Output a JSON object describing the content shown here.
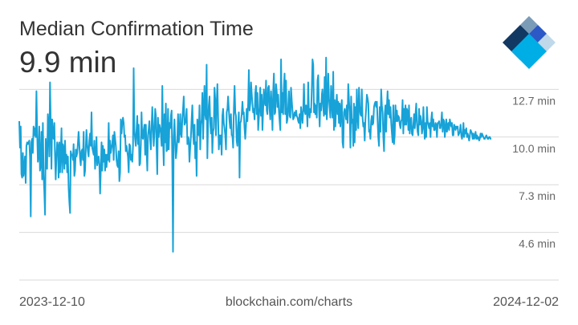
{
  "header": {
    "title": "Median Confirmation Time",
    "current_value": "9.9 min"
  },
  "footer": {
    "start_date": "2023-12-10",
    "source": "blockchain.com/charts",
    "end_date": "2024-12-02"
  },
  "logo": {
    "icon": "blockchain-logo-icon",
    "colors": [
      "#123962",
      "#7b9cb7",
      "#2d59c6",
      "#00aee6",
      "#bfd9ea"
    ]
  },
  "colors": {
    "line": "#17a2d8",
    "grid": "#d9d9d9",
    "tick_text": "#666666"
  },
  "chart_data": {
    "type": "line",
    "title": "Median Confirmation Time",
    "x_range": [
      "2023-12-10",
      "2024-12-02"
    ],
    "y_unit": "min",
    "ylim": [
      1.9,
      13.4
    ],
    "y_ticks": [
      {
        "value": 12.7,
        "label": "12.7 min"
      },
      {
        "value": 10.0,
        "label": "10.0 min"
      },
      {
        "value": 7.3,
        "label": "7.3 min"
      },
      {
        "value": 4.6,
        "label": "4.6 min"
      }
    ],
    "grid": true,
    "series": [
      {
        "values": [
          10.9,
          9.4,
          10.6,
          7.9,
          7.7,
          9.1,
          7.8,
          8.1,
          8.9,
          7.4,
          9.5,
          9.7,
          9.6,
          9.7,
          9.8,
          8.8,
          5.5,
          9.7,
          9.9,
          9.1,
          10.6,
          10.1,
          10.5,
          10.0,
          12.6,
          10.2,
          8.6,
          9.0,
          10.6,
          8.1,
          8.4,
          10.3,
          7.6,
          10.8,
          7.9,
          6.9,
          5.6,
          9.9,
          8.3,
          8.2,
          11.3,
          10.6,
          8.9,
          13.1,
          10.8,
          8.2,
          11.0,
          10.2,
          9.9,
          10.8,
          9.0,
          7.6,
          8.9,
          9.7,
          9.5,
          7.7,
          9.7,
          8.0,
          9.1,
          10.5,
          8.0,
          9.6,
          9.4,
          8.2,
          9.8,
          8.5,
          9.0,
          8.0,
          8.9,
          7.1,
          6.3,
          5.7,
          9.2,
          9.0,
          9.0,
          8.7,
          9.6,
          7.8,
          8.1,
          9.3,
          8.9,
          9.1,
          9.7,
          10.3,
          9.6,
          8.8,
          8.4,
          9.2,
          9.3,
          8.7,
          10.3,
          7.8,
          8.1,
          9.4,
          10.4,
          9.6,
          9.2,
          8.9,
          9.8,
          10.2,
          9.5,
          11.4,
          9.4,
          9.2,
          9.0,
          9.8,
          8.2,
          8.9,
          10.0,
          8.4,
          8.7,
          8.9,
          8.4,
          6.8,
          8.2,
          9.7,
          8.1,
          9.5,
          8.6,
          9.3,
          8.1,
          9.0,
          8.3,
          9.0,
          8.7,
          10.8,
          8.6,
          9.8,
          9.1,
          9.4,
          9.6,
          10.1,
          8.7,
          10.3,
          9.9,
          9.5,
          8.7,
          8.4,
          8.3,
          9.2,
          7.5,
          8.0,
          11.0,
          10.2,
          10.8,
          11.1,
          10.8,
          10.0,
          10.1,
          9.2,
          9.5,
          9.2,
          8.9,
          8.0,
          9.6,
          9.5,
          8.7,
          9.0,
          8.6,
          9.5,
          13.9,
          10.4,
          9.9,
          9.5,
          10.4,
          11.2,
          9.6,
          10.7,
          8.4,
          8.5,
          9.6,
          11.4,
          10.0,
          9.9,
          10.4,
          10.7,
          9.0,
          10.7,
          9.2,
          8.1,
          10.1,
          10.5,
          10.9,
          9.9,
          9.3,
          10.5,
          11.7,
          10.6,
          9.5,
          10.3,
          11.6,
          11.2,
          9.3,
          7.9,
          11.1,
          10.0,
          10.7,
          10.5,
          10.2,
          9.5,
          12.9,
          9.9,
          8.4,
          11.3,
          9.7,
          11.9,
          9.2,
          9.3,
          11.6,
          9.3,
          10.8,
          10.5,
          11.2,
          11.5,
          8.2,
          3.5,
          10.0,
          11.0,
          9.9,
          8.8,
          9.2,
          9.9,
          11.3,
          9.7,
          10.2,
          11.3,
          10.2,
          10.0,
          11.0,
          11.6,
          12.3,
          10.7,
          10.8,
          11.0,
          11.6,
          9.6,
          10.0,
          9.9,
          8.6,
          9.4,
          10.0,
          11.0,
          11.8,
          10.3,
          9.6,
          10.7,
          8.8,
          9.7,
          7.8,
          11.0,
          10.6,
          10.1,
          11.8,
          9.3,
          10.7,
          11.0,
          12.5,
          9.9,
          11.5,
          12.9,
          11.3,
          11.0,
          14.1,
          8.8,
          10.8,
          11.8,
          12.3,
          10.8,
          10.2,
          11.1,
          9.1,
          10.3,
          10.5,
          12.8,
          12.1,
          10.1,
          11.9,
          13.0,
          11.1,
          9.3,
          10.1,
          9.6,
          10.1,
          9.0,
          11.2,
          11.6,
          10.8,
          10.5,
          10.1,
          9.3,
          11.4,
          11.6,
          12.3,
          11.6,
          10.9,
          10.5,
          11.3,
          10.1,
          10.1,
          9.4,
          11.6,
          12.9,
          11.4,
          11.2,
          9.8,
          9.5,
          10.6,
          11.4,
          7.7,
          10.8,
          10.9,
          11.3,
          12.0,
          11.3,
          11.4,
          10.5,
          9.9,
          10.6,
          11.6,
          10.9,
          11.9,
          13.8,
          11.5,
          11.9,
          13.1,
          12.5,
          11.9,
          11.4,
          11.6,
          11.0,
          12.5,
          12.9,
          11.3,
          12.5,
          10.4,
          11.1,
          11.7,
          12.8,
          11.2,
          12.4,
          10.4,
          11.5,
          12.7,
          12.0,
          11.8,
          13.2,
          11.5,
          11.3,
          12.8,
          12.9,
          11.6,
          11.0,
          12.6,
          11.8,
          10.4,
          12.6,
          13.6,
          11.3,
          11.4,
          13.0,
          12.6,
          11.7,
          12.4,
          11.5,
          10.9,
          10.4,
          14.4,
          11.4,
          12.5,
          11.3,
          12.8,
          13.6,
          11.3,
          13.2,
          10.8,
          11.0,
          11.7,
          12.6,
          11.2,
          11.1,
          12.8,
          12.1,
          11.5,
          11.0,
          11.1,
          11.4,
          11.2,
          11.5,
          11.2,
          11.1,
          10.9,
          10.8,
          11.3,
          10.5,
          11.7,
          11.3,
          10.8,
          11.5,
          13.0,
          11.5,
          11.3,
          11.8,
          11.6,
          10.6,
          13.1,
          11.4,
          11.1,
          11.6,
          11.4,
          12.7,
          14.4,
          14.1,
          11.4,
          11.9,
          11.3,
          11.8,
          11.1,
          13.2,
          13.5,
          11.7,
          10.6,
          11.9,
          11.5,
          12.4,
          12.7,
          11.7,
          11.2,
          13.4,
          11.3,
          14.5,
          11.0,
          12.0,
          13.6,
          12.2,
          11.6,
          11.1,
          12.9,
          11.9,
          11.1,
          13.7,
          10.4,
          12.1,
          10.6,
          11.8,
          12.4,
          11.3,
          12.0,
          10.8,
          11.9,
          10.6,
          11.6,
          12.1,
          9.7,
          9.4,
          11.4,
          11.6,
          11.3,
          11.0,
          11.8,
          10.8,
          13.0,
          12.1,
          11.4,
          9.4,
          12.3,
          10.8,
          11.0,
          9.5,
          11.9,
          9.7,
          11.7,
          10.4,
          12.7,
          11.2,
          10.5,
          12.8,
          11.7,
          11.3,
          11.2,
          12.7,
          11.1,
          10.6,
          10.8,
          9.8,
          11.0,
          11.6,
          12.4,
          12.2,
          11.9,
          10.3,
          10.4,
          9.9,
          10.9,
          11.2,
          10.7,
          10.8,
          11.7,
          11.9,
          12.0,
          11.7,
          12.0,
          11.0,
          10.0,
          9.5,
          11.7,
          10.3,
          12.7,
          11.8,
          11.4,
          10.0,
          9.2,
          11.3,
          11.8,
          10.3,
          11.7,
          12.6,
          11.3,
          12.1,
          11.1,
          11.7,
          10.8,
          10.2,
          9.7,
          11.8,
          9.6,
          10.1,
          11.8,
          10.9,
          11.5,
          10.9,
          11.2,
          11.1,
          10.7,
          10.5,
          10.9,
          11.0,
          12.1,
          10.2,
          11.6,
          10.7,
          11.8,
          10.7,
          11.6,
          11.4,
          10.4,
          11.8,
          10.2,
          10.8,
          11.1,
          10.2,
          10.1,
          10.7,
          11.3,
          10.5,
          11.3,
          11.9,
          10.8,
          10.3,
          10.1,
          11.6,
          10.7,
          11.2,
          10.9,
          10.2,
          10.5,
          11.7,
          10.6,
          9.9,
          10.8,
          10.0,
          11.7,
          10.9,
          10.7,
          10.5,
          10.8,
          10.0,
          11.0,
          11.4,
          10.6,
          11.0,
          10.4,
          10.4,
          10.8,
          10.7,
          10.0,
          10.8,
          10.8,
          10.9,
          10.5,
          10.5,
          10.8,
          11.4,
          10.3,
          11.0,
          10.9,
          10.0,
          10.5,
          11.0,
          10.3,
          10.7,
          10.8,
          10.4,
          11.0,
          10.8,
          10.6,
          10.8,
          10.1,
          10.1,
          10.7,
          10.6,
          10.4,
          10.6,
          10.5,
          10.6,
          10.1,
          10.2,
          10.3,
          10.7,
          10.1,
          9.9,
          10.2,
          10.8,
          10.0,
          10.4,
          10.2,
          10.5,
          10.0,
          10.2,
          10.0,
          9.8,
          10.1,
          10.4,
          10.3,
          10.2,
          9.9,
          10.2,
          9.9,
          10.0,
          10.3,
          9.9,
          10.1,
          9.9,
          10.0,
          9.8,
          9.9,
          10.2,
          10.0,
          10.2,
          10.1,
          10.0,
          9.9,
          9.9,
          10.0,
          10.1,
          10.0,
          9.9,
          9.9,
          10.0,
          10.0,
          9.9,
          9.9
        ]
      }
    ]
  }
}
